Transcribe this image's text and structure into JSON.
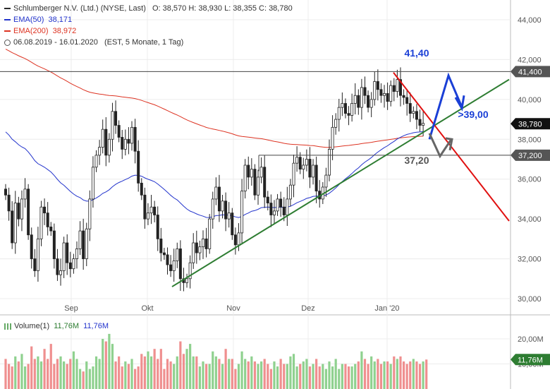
{
  "header": {
    "instrument": "Schlumberger N.V. (Ltd.) (NYSE, Last)",
    "ohlc": "O: 38,570  H: 38,930  L: 38,355  C: 38,780",
    "ema50_label": "EMA(50)",
    "ema50_value": "38,171",
    "ema200_label": "EMA(200)",
    "ema200_value": "38,972",
    "period": "06.08.2019 - 16.01.2020",
    "period_info": "(EST, 5 Monate, 1 Tag)"
  },
  "volume_header": {
    "label": "Volume(1)",
    "value1": "11,76M",
    "value2": "11,76M"
  },
  "colors": {
    "up": "#2a2a2a",
    "ema50": "#2233cc",
    "ema200": "#dd3322",
    "trend": "#2e7d32",
    "resistance": "#e01010",
    "target": "#1a3fd6",
    "vol_up": "#8fd18f",
    "vol_down": "#ef8f8f"
  },
  "chart_data": {
    "type": "candlestick",
    "price_axis": {
      "ylim": [
        29.7,
        44.6
      ],
      "ticks": [
        "44,000",
        "42,000",
        "40,000",
        "38,000",
        "36,000",
        "34,000",
        "32,000",
        "30,000"
      ]
    },
    "time_axis": {
      "labels": [
        "Sep",
        "Okt",
        "Nov",
        "Dez",
        "Jan '20"
      ]
    },
    "price_markers": [
      {
        "label": "41,400",
        "value": 41.4,
        "style": "dark"
      },
      {
        "label": "38,780",
        "value": 38.78,
        "style": "last"
      },
      {
        "label": "37,200",
        "value": 37.2,
        "style": "dark"
      }
    ],
    "annotations": [
      {
        "text": "41,40",
        "color": "#1a3fd6"
      },
      {
        "text": ">39,00",
        "color": "#1a3fd6"
      },
      {
        "text": "37,20",
        "color": "#555555"
      }
    ],
    "closes": [
      35.2,
      34.4,
      32.8,
      34.8,
      34.0,
      35.0,
      35.5,
      33.2,
      32.0,
      31.4,
      33.0,
      34.6,
      34.3,
      33.6,
      33.4,
      32.0,
      31.2,
      31.4,
      32.8,
      31.8,
      31.5,
      32.0,
      32.5,
      33.4,
      32.0,
      33.5,
      35.0,
      36.6,
      37.2,
      37.6,
      38.5,
      37.2,
      38.0,
      39.4,
      38.7,
      38.1,
      37.5,
      38.0,
      37.8,
      38.6,
      37.4,
      35.8,
      35.2,
      34.0,
      34.3,
      34.6,
      34.2,
      33.0,
      32.3,
      32.2,
      31.7,
      31.4,
      31.9,
      32.5,
      31.0,
      30.8,
      31.0,
      31.8,
      32.8,
      32.3,
      32.6,
      33.0,
      32.5,
      34.0,
      35.0,
      35.6,
      34.4,
      34.9,
      34.0,
      34.3,
      33.2,
      32.7,
      33.3,
      35.4,
      36.7,
      36.1,
      36.5,
      35.2,
      36.1,
      36.6,
      35.1,
      34.8,
      34.2,
      34.4,
      35.0,
      34.6,
      34.2,
      35.0,
      35.7,
      36.8,
      37.1,
      36.5,
      36.7,
      37.0,
      36.1,
      36.7,
      35.4,
      35.0,
      35.6,
      36.2,
      37.5,
      38.6,
      39.0,
      39.6,
      39.8,
      39.3,
      39.2,
      39.8,
      40.2,
      39.6,
      40.6,
      40.2,
      39.6,
      40.0,
      40.9,
      40.5,
      40.2,
      40.3,
      39.9,
      40.7,
      40.4,
      41.0,
      40.2,
      40.1,
      39.8,
      39.3,
      39.4,
      39.0,
      38.7,
      38.8
    ],
    "volume": {
      "axis_ticks": [
        "20,00M",
        "10,00M"
      ],
      "last_label": "11,76M",
      "values": [
        12,
        10,
        9,
        13,
        11,
        14,
        9,
        10,
        17,
        12,
        13,
        11,
        16,
        12,
        18,
        10,
        12,
        13,
        11,
        10,
        12,
        15,
        12,
        8,
        7,
        11,
        8,
        9,
        13,
        12,
        20,
        19,
        22,
        18,
        11,
        13,
        9,
        11,
        10,
        12,
        8,
        9,
        14,
        13,
        15,
        13,
        16,
        12,
        16,
        8,
        12,
        11,
        10,
        13,
        19,
        14,
        16,
        18,
        13,
        13,
        9,
        11,
        10,
        10,
        15,
        13,
        12,
        10,
        16,
        12,
        12,
        8,
        10,
        15,
        12,
        11,
        13,
        11,
        10,
        11,
        12,
        10,
        8,
        11,
        9,
        12,
        10,
        10,
        13,
        14,
        9,
        10,
        11,
        12,
        9,
        10,
        12,
        9,
        10,
        8,
        11,
        9,
        12,
        8,
        10,
        10,
        9,
        9,
        10,
        11,
        15,
        12,
        10,
        13,
        11,
        12,
        10,
        11,
        11,
        10,
        13,
        12,
        13,
        11,
        10,
        11,
        12,
        11,
        10,
        11,
        11.76
      ]
    }
  }
}
